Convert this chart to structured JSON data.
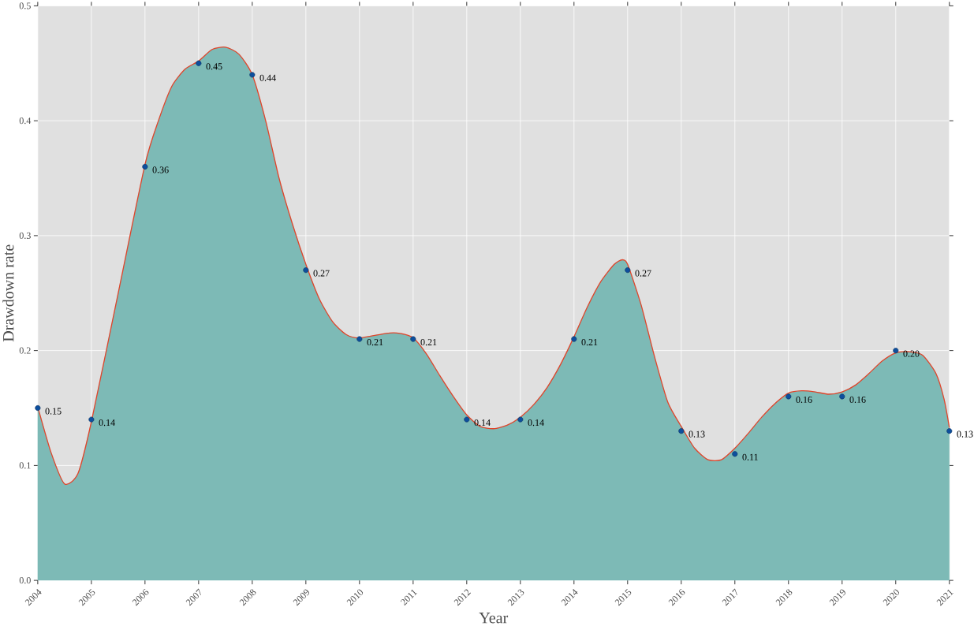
{
  "chart_data": {
    "type": "area",
    "xlabel": "Year",
    "ylabel": "Drawdown rate",
    "xlim": [
      2004,
      2021
    ],
    "xticks": [
      2004,
      2005,
      2006,
      2007,
      2008,
      2009,
      2010,
      2011,
      2012,
      2013,
      2014,
      2015,
      2016,
      2017,
      2018,
      2019,
      2020,
      2021
    ],
    "ylim": [
      0,
      0.5
    ],
    "yticks": [
      {
        "value": 0,
        "label": "0.0"
      },
      {
        "value": 0.1,
        "label": "0.1"
      },
      {
        "value": 0.2,
        "label": "0.2"
      },
      {
        "value": 0.3,
        "label": "0.3"
      },
      {
        "value": 0.4,
        "label": "0.4"
      },
      {
        "value": 0.5,
        "label": "0.5"
      }
    ],
    "grid": true,
    "series": [
      {
        "color": "#7dbab6",
        "x": [
          2004,
          2004.25,
          2004.5,
          2004.75,
          2005,
          2005.5,
          2006,
          2006.25,
          2006.5,
          2006.75,
          2007,
          2007.25,
          2007.5,
          2007.75,
          2008,
          2008.25,
          2008.5,
          2008.75,
          2009,
          2009.25,
          2009.5,
          2009.75,
          2010,
          2010.5,
          2010.75,
          2011,
          2011.25,
          2011.5,
          2011.75,
          2012,
          2012.25,
          2012.5,
          2012.75,
          2013,
          2013.25,
          2013.5,
          2013.75,
          2014,
          2014.25,
          2014.5,
          2014.75,
          2014.9,
          2015,
          2015.25,
          2015.5,
          2015.75,
          2016,
          2016.25,
          2016.5,
          2016.75,
          2017,
          2017.25,
          2017.5,
          2017.75,
          2018,
          2018.25,
          2018.5,
          2018.75,
          2019,
          2019.25,
          2019.5,
          2019.75,
          2020,
          2020.25,
          2020.5,
          2020.75,
          2020.9,
          2021
        ],
        "values": [
          0.151,
          0.111,
          0.084,
          0.093,
          0.138,
          0.25,
          0.362,
          0.4,
          0.43,
          0.445,
          0.452,
          0.462,
          0.464,
          0.458,
          0.44,
          0.4,
          0.35,
          0.31,
          0.275,
          0.245,
          0.225,
          0.214,
          0.211,
          0.215,
          0.215,
          0.211,
          0.197,
          0.178,
          0.16,
          0.144,
          0.134,
          0.132,
          0.135,
          0.142,
          0.153,
          0.168,
          0.188,
          0.212,
          0.238,
          0.26,
          0.275,
          0.279,
          0.275,
          0.24,
          0.195,
          0.155,
          0.134,
          0.115,
          0.105,
          0.105,
          0.115,
          0.128,
          0.142,
          0.154,
          0.163,
          0.165,
          0.164,
          0.162,
          0.164,
          0.17,
          0.18,
          0.191,
          0.198,
          0.199,
          0.196,
          0.18,
          0.158,
          0.133
        ]
      },
      {
        "type": "line",
        "color": "#e0452b",
        "x": [
          2004,
          2004.25,
          2004.5,
          2004.75,
          2005,
          2005.5,
          2006,
          2006.25,
          2006.5,
          2006.75,
          2007,
          2007.25,
          2007.5,
          2007.75,
          2008,
          2008.25,
          2008.5,
          2008.75,
          2009,
          2009.25,
          2009.5,
          2009.75,
          2010,
          2010.5,
          2010.75,
          2011,
          2011.25,
          2011.5,
          2011.75,
          2012,
          2012.25,
          2012.5,
          2012.75,
          2013,
          2013.25,
          2013.5,
          2013.75,
          2014,
          2014.25,
          2014.5,
          2014.75,
          2014.9,
          2015,
          2015.25,
          2015.5,
          2015.75,
          2016,
          2016.25,
          2016.5,
          2016.75,
          2017,
          2017.25,
          2017.5,
          2017.75,
          2018,
          2018.25,
          2018.5,
          2018.75,
          2019,
          2019.25,
          2019.5,
          2019.75,
          2020,
          2020.25,
          2020.5,
          2020.75,
          2020.9,
          2021
        ],
        "values": [
          0.151,
          0.111,
          0.084,
          0.093,
          0.138,
          0.25,
          0.362,
          0.4,
          0.43,
          0.445,
          0.452,
          0.462,
          0.464,
          0.458,
          0.44,
          0.4,
          0.35,
          0.31,
          0.275,
          0.245,
          0.225,
          0.214,
          0.211,
          0.215,
          0.215,
          0.211,
          0.197,
          0.178,
          0.16,
          0.144,
          0.134,
          0.132,
          0.135,
          0.142,
          0.153,
          0.168,
          0.188,
          0.212,
          0.238,
          0.26,
          0.275,
          0.279,
          0.275,
          0.24,
          0.195,
          0.155,
          0.134,
          0.115,
          0.105,
          0.105,
          0.115,
          0.128,
          0.142,
          0.154,
          0.163,
          0.165,
          0.164,
          0.162,
          0.164,
          0.17,
          0.18,
          0.191,
          0.198,
          0.199,
          0.196,
          0.18,
          0.158,
          0.133
        ]
      },
      {
        "type": "scatter",
        "color": "#0d4f9e",
        "x": [
          2004,
          2005,
          2006,
          2007,
          2008,
          2009,
          2010,
          2011,
          2012,
          2013,
          2014,
          2015,
          2016,
          2017,
          2018,
          2019,
          2020,
          2021
        ],
        "values": [
          0.15,
          0.14,
          0.36,
          0.45,
          0.44,
          0.27,
          0.21,
          0.21,
          0.14,
          0.14,
          0.21,
          0.27,
          0.13,
          0.11,
          0.16,
          0.16,
          0.2,
          0.13
        ],
        "value_labels": [
          "0.15",
          "0.14",
          "0.36",
          "0.45",
          "0.44",
          "0.27",
          "0.21",
          "0.21",
          "0.14",
          "0.14",
          "0.21",
          "0.27",
          "0.13",
          "0.11",
          "0.16",
          "0.16",
          "0.20",
          "0.13"
        ]
      }
    ]
  }
}
